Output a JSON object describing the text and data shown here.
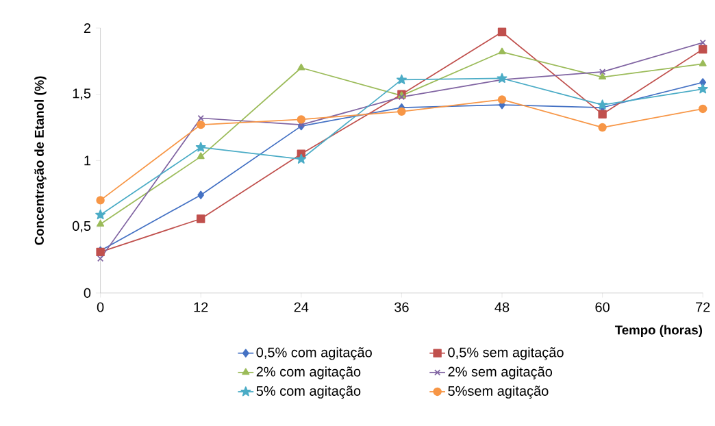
{
  "chart_data": {
    "type": "line",
    "xlabel": "Tempo (horas)",
    "ylabel": "Concentração de  Etanol (%)",
    "x": [
      0,
      12,
      24,
      36,
      48,
      60,
      72
    ],
    "series": [
      {
        "name": "0,5% com agitação",
        "color": "#4572c4",
        "marker": "diamond",
        "values": [
          0.32,
          0.74,
          1.26,
          1.4,
          1.42,
          1.4,
          1.59
        ]
      },
      {
        "name": "0,5% sem agitação",
        "color": "#c0504d",
        "marker": "square",
        "values": [
          0.31,
          0.56,
          1.05,
          1.5,
          1.97,
          1.35,
          1.84
        ]
      },
      {
        "name": "2% com agitação",
        "color": "#9bbb59",
        "marker": "triangle",
        "values": [
          0.52,
          1.03,
          1.7,
          1.49,
          1.82,
          1.63,
          1.73
        ]
      },
      {
        "name": "2% sem agitação",
        "color": "#8064a2",
        "marker": "cross",
        "values": [
          0.26,
          1.32,
          1.27,
          1.48,
          1.61,
          1.67,
          1.89
        ]
      },
      {
        "name": "5% com agitação",
        "color": "#4bacc6",
        "marker": "star",
        "values": [
          0.59,
          1.1,
          1.01,
          1.61,
          1.62,
          1.42,
          1.54
        ]
      },
      {
        "name": "5%sem agitação",
        "color": "#f79646",
        "marker": "circle",
        "values": [
          0.7,
          1.27,
          1.31,
          1.37,
          1.46,
          1.25,
          1.39
        ]
      }
    ],
    "xlim": [
      0,
      72
    ],
    "xticks": [
      0,
      12,
      24,
      36,
      48,
      60,
      72
    ],
    "ylim": [
      0,
      2
    ],
    "yticks": [
      0,
      {
        "value": 0.5,
        "label": "0,5"
      },
      1,
      {
        "value": 1.5,
        "label": "1,5"
      },
      2
    ],
    "grid": false,
    "legend": "bottom",
    "line_style": "solid"
  }
}
